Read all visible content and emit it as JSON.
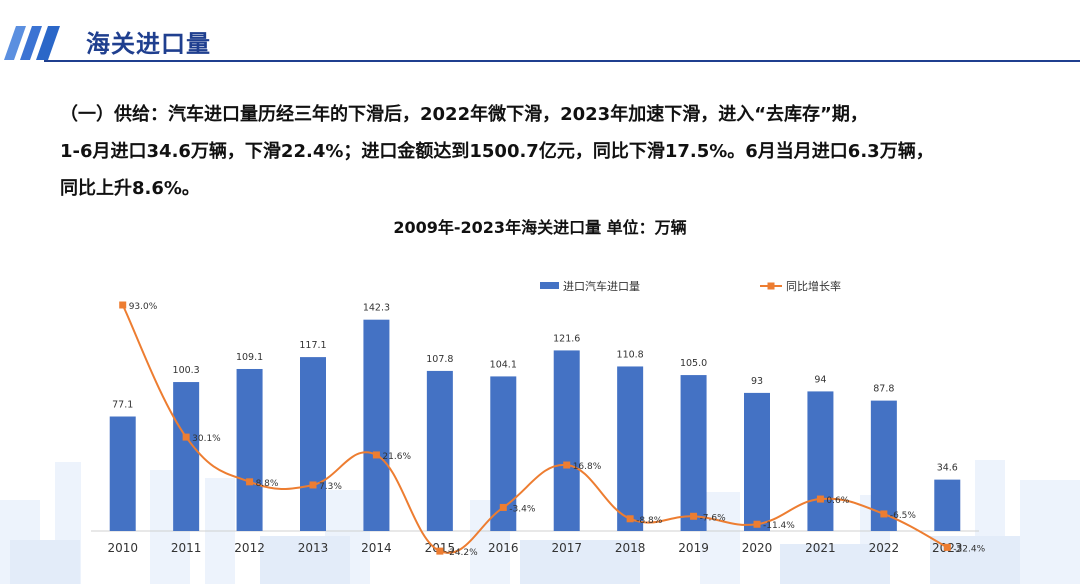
{
  "page": {
    "title": "海关进口量",
    "summary_lines": [
      "（一）供给：汽车进口量历经三年的下滑后，2022年微下滑，2023年加速下滑，进入“去库存”期，",
      "1-6月进口34.6万辆，下滑22.4%；进口金额达到1500.7亿元，同比下滑17.5%。6月当月进口6.3万辆，",
      "同比上升8.6%。"
    ]
  },
  "colors": {
    "bar": "#4472C4",
    "line": "#ED7D31",
    "title": "#1f3f8f",
    "stripe": "#2b67c8",
    "city": "#e8f0fb"
  },
  "chart_data": {
    "type": "bar",
    "title": "2009年-2023年海关进口量  单位：万辆",
    "categories": [
      "2010",
      "2011",
      "2012",
      "2013",
      "2014",
      "2015",
      "2016",
      "2017",
      "2018",
      "2019",
      "2020",
      "2021",
      "2022",
      "2023"
    ],
    "series": [
      {
        "name": "进口汽车进口量",
        "type": "bar",
        "axis": "left",
        "values": [
          77.1,
          100.3,
          109.1,
          117.1,
          142.3,
          107.8,
          104.1,
          121.6,
          110.8,
          105.0,
          93,
          94,
          87.8,
          34.6
        ],
        "labels": [
          "77.1",
          "100.3",
          "109.1",
          "117.1",
          "142.3",
          "107.8",
          "104.1",
          "121.6",
          "110.8",
          "105.0",
          "93",
          "94",
          "87.8",
          "34.6"
        ]
      },
      {
        "name": "同比增长率",
        "type": "line",
        "axis": "right",
        "smooth": true,
        "values": [
          93.0,
          30.1,
          8.8,
          7.3,
          21.6,
          -24.2,
          -3.4,
          16.8,
          -8.8,
          -7.6,
          -11.4,
          0.6,
          -6.5,
          -22.4
        ],
        "labels": [
          "93.0%",
          "30.1%",
          "8.8%",
          "7.3%",
          "21.6%",
          "-24.2%",
          "-3.4%",
          "16.8%",
          "-8.8%",
          "-7.6%",
          "-11.4%",
          "0.6%",
          "-6.5%",
          "-22.4%"
        ]
      }
    ],
    "legend_position": "top-right",
    "grid": false,
    "axes_visible": false,
    "ylim_left": [
      0,
      160
    ],
    "ylim_right": [
      -30,
      100
    ]
  }
}
